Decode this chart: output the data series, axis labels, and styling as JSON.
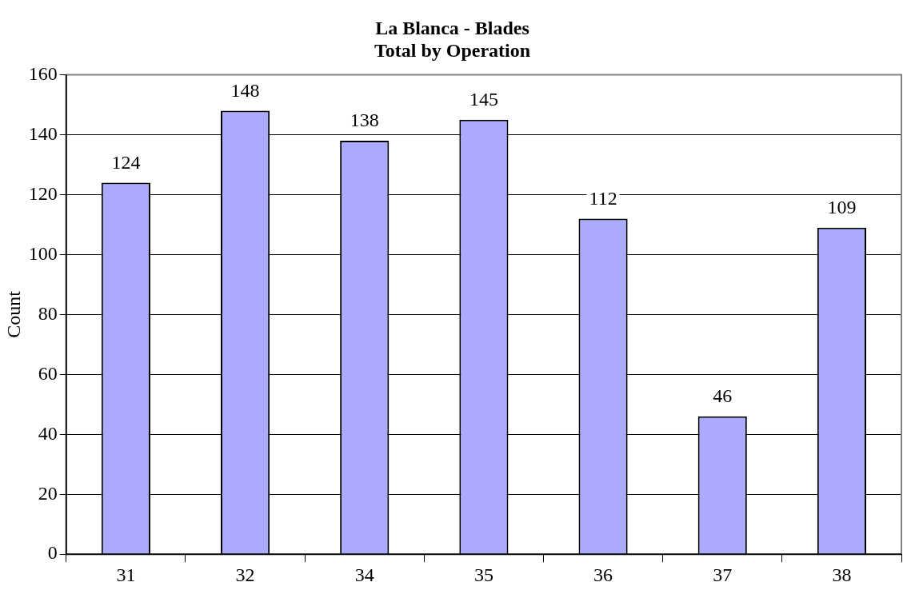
{
  "chart_data": {
    "type": "bar",
    "title": "La Blanca - Blades",
    "subtitle": "Total by Operation",
    "ylabel": "Count",
    "categories": [
      "31",
      "32",
      "34",
      "35",
      "36",
      "37",
      "38"
    ],
    "values": [
      124,
      148,
      138,
      145,
      112,
      46,
      109
    ],
    "color": "#aaaaff",
    "ylim": [
      0,
      160
    ],
    "yticks": [
      0,
      20,
      40,
      60,
      80,
      100,
      120,
      140,
      160
    ],
    "grid": "y",
    "data_labels": true,
    "legend": false
  }
}
